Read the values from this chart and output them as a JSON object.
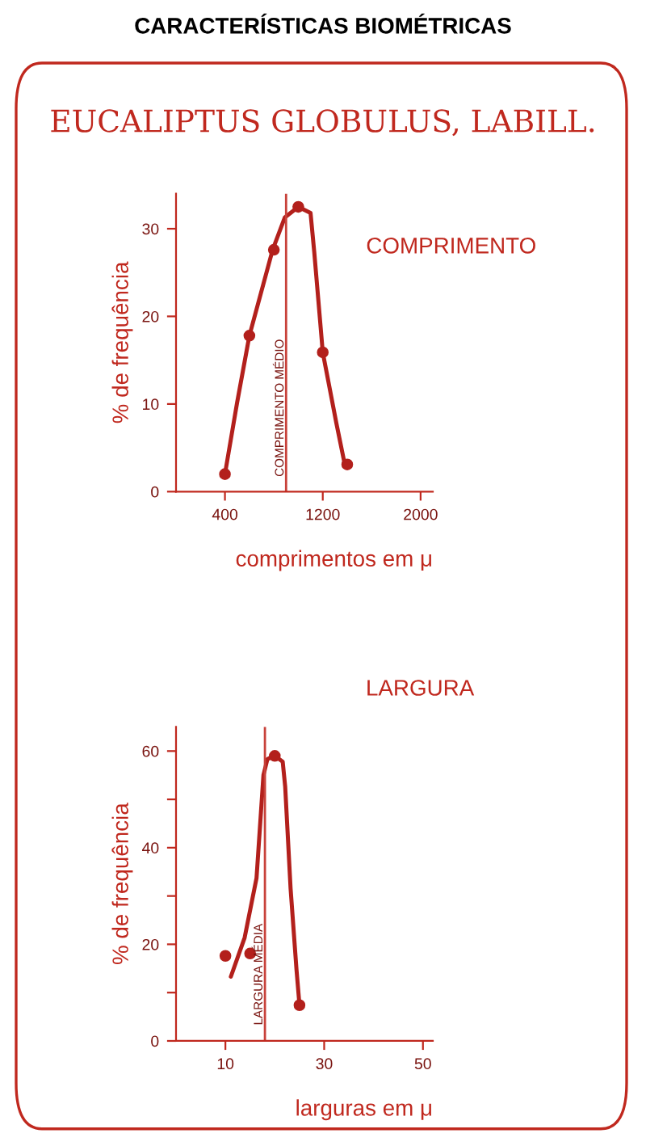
{
  "chart_data": [
    {
      "type": "scatter",
      "title": "CARACTERÍSTICAS BIOMÉTRICAS",
      "subtitle": "EUCALIPTUS GLOBULUS, LABILL.",
      "annotations": [
        "COMPRIMENTO"
      ],
      "xlabel": "comprimentos em μ",
      "ylabel": "% de frequência",
      "xlim": [
        0,
        2100
      ],
      "xticks": [
        400,
        1200,
        2000
      ],
      "ylim": [
        0,
        34
      ],
      "yticks": [
        0,
        10,
        20,
        30
      ],
      "grid": false,
      "legend": false,
      "series": [
        {
          "type": "line",
          "color": "#b3201c",
          "marker": "none",
          "x": [
            400,
            500,
            600,
            790,
            890,
            1000,
            1100,
            1130,
            1200,
            1310,
            1380
          ],
          "values": [
            2.0,
            10.2,
            17.8,
            27.6,
            31.3,
            32.5,
            31.8,
            27.4,
            15.9,
            7.9,
            3.1
          ]
        },
        {
          "color": "#b3201c",
          "marker": "circle",
          "x": [
            400,
            600,
            800,
            1000,
            1200,
            1400
          ],
          "values": [
            2.0,
            17.8,
            27.6,
            32.5,
            15.9,
            3.1
          ]
        }
      ],
      "ref_lines": [
        {
          "axis": "x",
          "value": 900,
          "label": "COMPRIMENTO MÉDIO",
          "color": "#c8413a"
        }
      ]
    },
    {
      "type": "scatter",
      "title": "LARGURA",
      "xlabel": "larguras em μ",
      "ylabel": "% de frequência",
      "xlim": [
        0,
        52
      ],
      "xticks": [
        10,
        30,
        50
      ],
      "ylim": [
        0,
        65
      ],
      "yticks": [
        0,
        {
          "value": 10,
          "label": null
        },
        20,
        {
          "value": 30,
          "label": null
        },
        40,
        {
          "value": 50,
          "label": null
        },
        60
      ],
      "grid": false,
      "legend": false,
      "series": [
        {
          "type": "line",
          "color": "#b3201c",
          "marker": "none",
          "x": [
            11.1,
            13.9,
            16.3,
            17.7,
            18.5,
            19.9,
            21.6,
            22.1,
            23.2,
            24.4,
            25.0
          ],
          "values": [
            13.3,
            21.4,
            33.7,
            55,
            58.3,
            59.1,
            57.8,
            52.7,
            31.5,
            14.7,
            7.4
          ]
        },
        {
          "color": "#b3201c",
          "marker": "circle",
          "x": [
            10,
            15,
            20,
            25
          ],
          "values": [
            17.6,
            18.1,
            59.0,
            7.4
          ]
        }
      ],
      "ref_lines": [
        {
          "axis": "x",
          "value": 18,
          "label": "LARGURA MÉDIA",
          "color": "#c8413a"
        }
      ]
    }
  ]
}
